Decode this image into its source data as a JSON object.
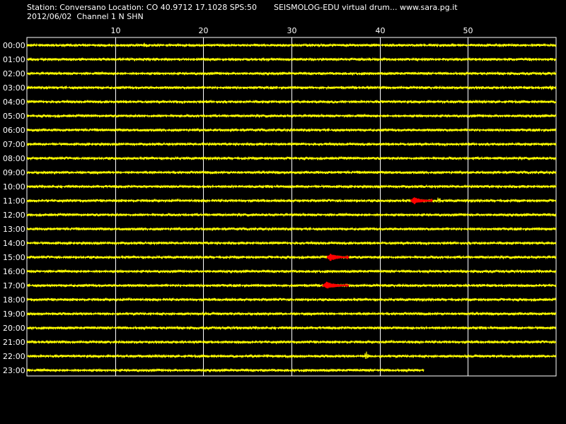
{
  "header": {
    "station": "Station: Conversano Location: CO 40.9712 17.1028 SPS:50",
    "date_channel": "2012/06/02  Channel 1 N SHN",
    "title_right": "SEISMOLOG-EDU virtual drum... www.sara.pg.it"
  },
  "chart_data": {
    "type": "line",
    "xlabel": "",
    "ylabel": "",
    "xlim": [
      0,
      60
    ],
    "x_ticks": [
      10,
      20,
      30,
      40,
      50
    ],
    "grid": true,
    "trace_color": "#ffff00",
    "event_color": "#ff0000",
    "background": "#000000",
    "rows": [
      {
        "hour": "00:00",
        "end_min": 60,
        "events": [],
        "bumps": [
          {
            "at": 13.5,
            "amp": 4
          }
        ]
      },
      {
        "hour": "01:00",
        "end_min": 60,
        "events": [],
        "bumps": []
      },
      {
        "hour": "02:00",
        "end_min": 60,
        "events": [],
        "bumps": []
      },
      {
        "hour": "03:00",
        "end_min": 60,
        "events": [],
        "bumps": [
          {
            "at": 59.5,
            "amp": 3
          }
        ]
      },
      {
        "hour": "04:00",
        "end_min": 60,
        "events": [],
        "bumps": []
      },
      {
        "hour": "05:00",
        "end_min": 60,
        "events": [],
        "bumps": []
      },
      {
        "hour": "06:00",
        "end_min": 60,
        "events": [],
        "bumps": []
      },
      {
        "hour": "07:00",
        "end_min": 60,
        "events": [],
        "bumps": []
      },
      {
        "hour": "08:00",
        "end_min": 60,
        "events": [],
        "bumps": []
      },
      {
        "hour": "09:00",
        "end_min": 60,
        "events": [],
        "bumps": []
      },
      {
        "hour": "10:00",
        "end_min": 60,
        "events": [],
        "bumps": []
      },
      {
        "hour": "11:00",
        "end_min": 60,
        "events": [
          {
            "start": 43.5,
            "end": 46.0
          }
        ],
        "bumps": [
          {
            "at": 46.7,
            "amp": 4
          }
        ]
      },
      {
        "hour": "12:00",
        "end_min": 60,
        "events": [],
        "bumps": []
      },
      {
        "hour": "13:00",
        "end_min": 60,
        "events": [],
        "bumps": []
      },
      {
        "hour": "14:00",
        "end_min": 60,
        "events": [],
        "bumps": []
      },
      {
        "hour": "15:00",
        "end_min": 60,
        "events": [
          {
            "start": 34.0,
            "end": 36.5
          }
        ],
        "bumps": []
      },
      {
        "hour": "16:00",
        "end_min": 60,
        "events": [],
        "bumps": []
      },
      {
        "hour": "17:00",
        "end_min": 60,
        "events": [
          {
            "start": 33.5,
            "end": 36.5
          }
        ],
        "bumps": []
      },
      {
        "hour": "18:00",
        "end_min": 60,
        "events": [],
        "bumps": []
      },
      {
        "hour": "19:00",
        "end_min": 60,
        "events": [],
        "bumps": []
      },
      {
        "hour": "20:00",
        "end_min": 60,
        "events": [],
        "bumps": []
      },
      {
        "hour": "21:00",
        "end_min": 60,
        "events": [],
        "bumps": []
      },
      {
        "hour": "22:00",
        "end_min": 60,
        "events": [],
        "bumps": [
          {
            "at": 38.5,
            "amp": 5
          }
        ]
      },
      {
        "hour": "23:00",
        "end_min": 45,
        "events": [],
        "bumps": []
      }
    ]
  }
}
